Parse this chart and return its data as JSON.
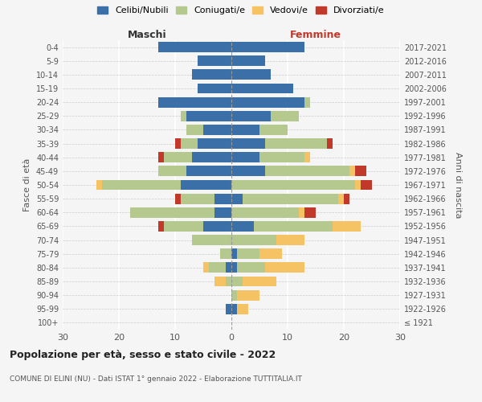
{
  "age_groups": [
    "100+",
    "95-99",
    "90-94",
    "85-89",
    "80-84",
    "75-79",
    "70-74",
    "65-69",
    "60-64",
    "55-59",
    "50-54",
    "45-49",
    "40-44",
    "35-39",
    "30-34",
    "25-29",
    "20-24",
    "15-19",
    "10-14",
    "5-9",
    "0-4"
  ],
  "birth_years": [
    "≤ 1921",
    "1922-1926",
    "1927-1931",
    "1932-1936",
    "1937-1941",
    "1942-1946",
    "1947-1951",
    "1952-1956",
    "1957-1961",
    "1962-1966",
    "1967-1971",
    "1972-1976",
    "1977-1981",
    "1982-1986",
    "1987-1991",
    "1992-1996",
    "1997-2001",
    "2002-2006",
    "2007-2011",
    "2012-2016",
    "2017-2021"
  ],
  "maschi": {
    "celibi": [
      0,
      1,
      0,
      0,
      1,
      0,
      0,
      5,
      3,
      3,
      9,
      8,
      7,
      6,
      5,
      8,
      13,
      6,
      7,
      6,
      13
    ],
    "coniugati": [
      0,
      0,
      0,
      1,
      3,
      2,
      7,
      7,
      15,
      6,
      14,
      5,
      5,
      3,
      3,
      1,
      0,
      0,
      0,
      0,
      0
    ],
    "vedovi": [
      0,
      0,
      0,
      2,
      1,
      0,
      0,
      0,
      0,
      0,
      1,
      0,
      0,
      0,
      0,
      0,
      0,
      0,
      0,
      0,
      0
    ],
    "divorziati": [
      0,
      0,
      0,
      0,
      0,
      0,
      0,
      1,
      0,
      1,
      0,
      0,
      1,
      1,
      0,
      0,
      0,
      0,
      0,
      0,
      0
    ]
  },
  "femmine": {
    "nubili": [
      0,
      1,
      0,
      0,
      1,
      1,
      0,
      4,
      0,
      2,
      0,
      6,
      5,
      6,
      5,
      7,
      13,
      11,
      7,
      6,
      13
    ],
    "coniugate": [
      0,
      0,
      1,
      2,
      5,
      4,
      8,
      14,
      12,
      17,
      22,
      15,
      8,
      11,
      5,
      5,
      1,
      0,
      0,
      0,
      0
    ],
    "vedove": [
      0,
      2,
      4,
      6,
      7,
      4,
      5,
      5,
      1,
      1,
      1,
      1,
      1,
      0,
      0,
      0,
      0,
      0,
      0,
      0,
      0
    ],
    "divorziate": [
      0,
      0,
      0,
      0,
      0,
      0,
      0,
      0,
      2,
      1,
      2,
      2,
      0,
      1,
      0,
      0,
      0,
      0,
      0,
      0,
      0
    ]
  },
  "colors": {
    "celibi": "#3a6fa8",
    "coniugati": "#b5c98e",
    "vedovi": "#f5c264",
    "divorziati": "#c0392b"
  },
  "xlim": 30,
  "title": "Popolazione per età, sesso e stato civile - 2022",
  "subtitle": "COMUNE DI ELINI (NU) - Dati ISTAT 1° gennaio 2022 - Elaborazione TUTTITALIA.IT",
  "ylabel_left": "Fasce di età",
  "ylabel_right": "Anni di nascita",
  "xlabel_left": "Maschi",
  "xlabel_right": "Femmine"
}
